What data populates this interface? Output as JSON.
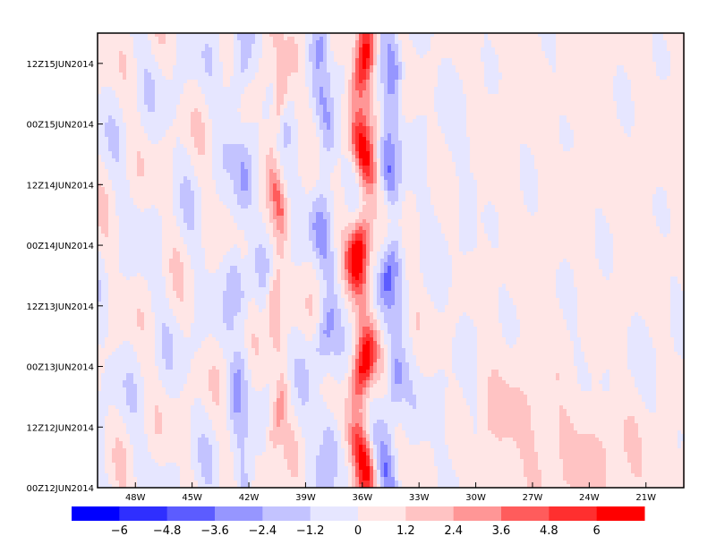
{
  "chart_data": {
    "type": "heatmap",
    "title": "",
    "xlabel": "",
    "ylabel": "",
    "x_axis": {
      "range_deg": [
        -50,
        -19
      ],
      "ticks": [
        {
          "value": -48,
          "label": "48W"
        },
        {
          "value": -45,
          "label": "45W"
        },
        {
          "value": -42,
          "label": "42W"
        },
        {
          "value": -39,
          "label": "39W"
        },
        {
          "value": -36,
          "label": "36W"
        },
        {
          "value": -33,
          "label": "33W"
        },
        {
          "value": -30,
          "label": "30W"
        },
        {
          "value": -27,
          "label": "27W"
        },
        {
          "value": -24,
          "label": "24W"
        },
        {
          "value": -21,
          "label": "21W"
        }
      ]
    },
    "y_axis": {
      "range_hours": [
        0,
        90
      ],
      "ticks": [
        {
          "value": 0,
          "label": "00Z12JUN2014"
        },
        {
          "value": 12,
          "label": "12Z12JUN2014"
        },
        {
          "value": 24,
          "label": "00Z13JUN2014"
        },
        {
          "value": 36,
          "label": "12Z13JUN2014"
        },
        {
          "value": 48,
          "label": "00Z14JUN2014"
        },
        {
          "value": 60,
          "label": "12Z14JUN2014"
        },
        {
          "value": 72,
          "label": "00Z15JUN2014"
        },
        {
          "value": 84,
          "label": "12Z15JUN2014"
        }
      ]
    },
    "colorbar": {
      "colors": [
        "#0000ff",
        "#2f2fff",
        "#5c5cff",
        "#9696ff",
        "#c3c3ff",
        "#e6e6ff",
        "#ffe6e6",
        "#ffc3c3",
        "#ff9696",
        "#ff5c5c",
        "#ff2f2f",
        "#ff0000"
      ],
      "levels": [
        -7.2,
        -6,
        -4.8,
        -3.6,
        -2.4,
        -1.2,
        0,
        1.2,
        2.4,
        3.6,
        4.8,
        6,
        7.2
      ],
      "labels": [
        "−6",
        "−4.8",
        "−3.6",
        "−2.4",
        "−1.2",
        "0",
        "1.2",
        "2.4",
        "3.6",
        "4.8",
        "6"
      ]
    },
    "features": [
      {
        "name": "positive band near 36W",
        "lon": -36.0,
        "width_deg": 0.55,
        "amplitude": 6.5
      },
      {
        "name": "positive band near 40.5W",
        "lon": -40.5,
        "width_deg": 0.35,
        "amplitude": 2.6
      },
      {
        "name": "negative band near 34.5W",
        "lon": -34.5,
        "width_deg": 0.5,
        "amplitude": -3.0
      },
      {
        "name": "negative band near 38W",
        "lon": -38.0,
        "width_deg": 0.5,
        "amplitude": -2.2
      },
      {
        "name": "negative band near 42.5W",
        "lon": -42.5,
        "width_deg": 0.5,
        "amplitude": -2.0
      }
    ]
  }
}
